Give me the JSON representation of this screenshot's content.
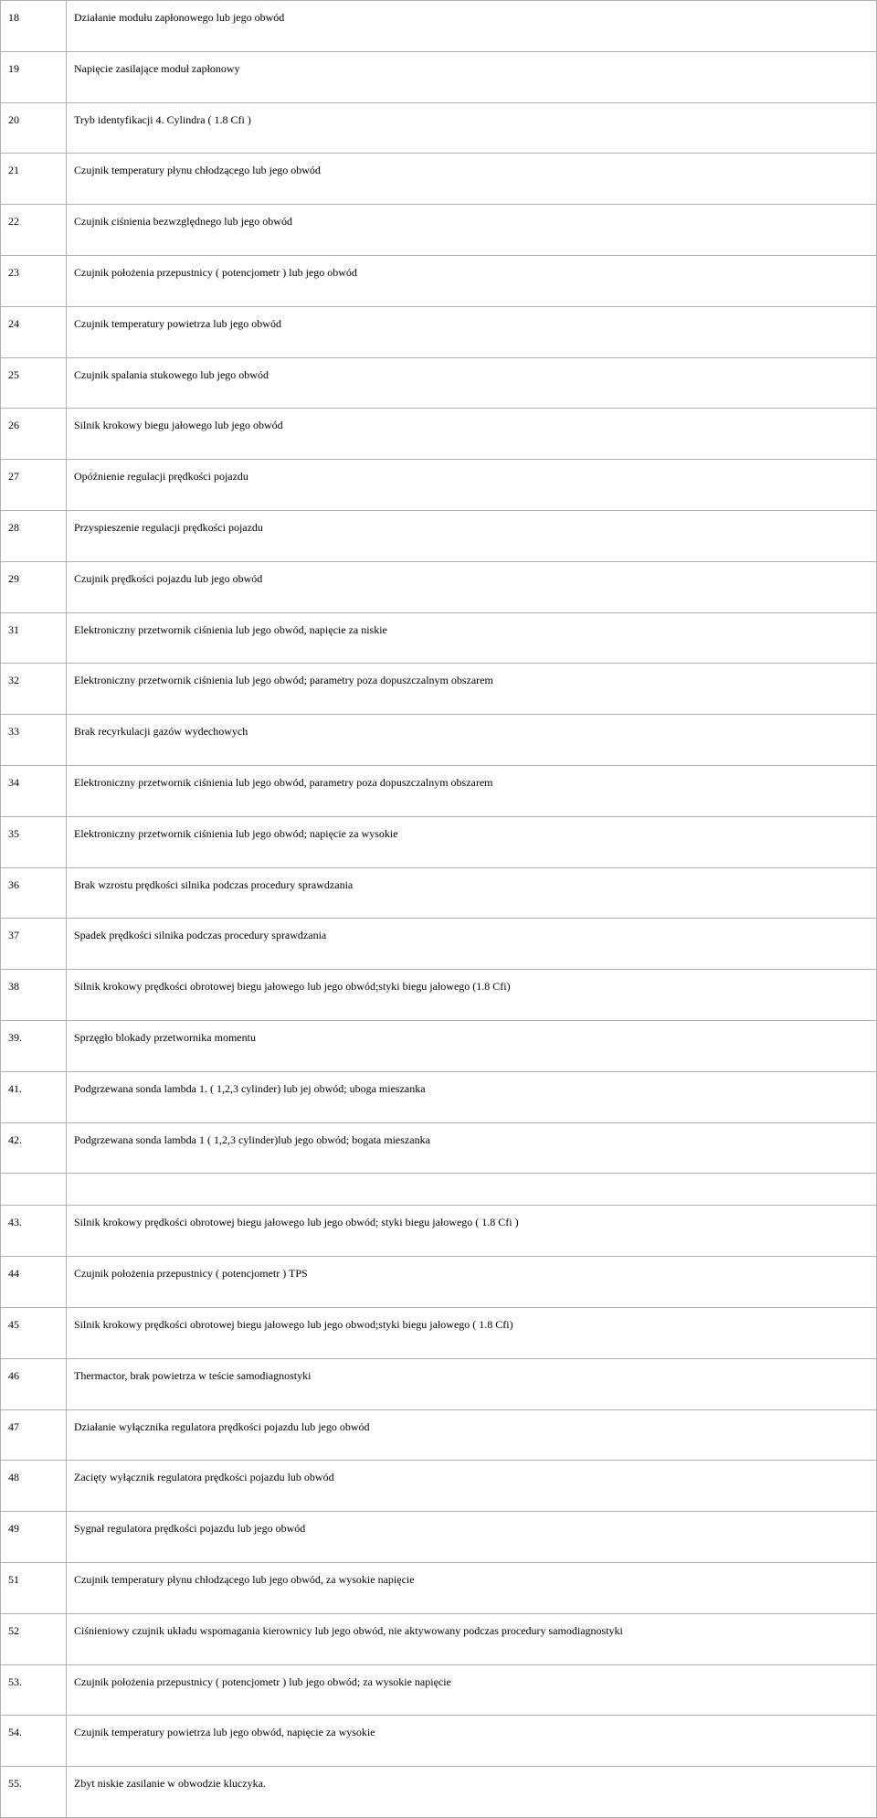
{
  "rows": [
    {
      "code": "18",
      "desc": "Działanie modułu zapłonowego lub jego obwód"
    },
    {
      "code": "19",
      "desc": "Napięcie zasilające moduł zapłonowy"
    },
    {
      "code": "20",
      "desc": "Tryb identyfikacji 4. Cylindra ( 1.8 Cfi )"
    },
    {
      "code": "21",
      "desc": "Czujnik temperatury płynu chłodzącego lub jego obwód"
    },
    {
      "code": "22",
      "desc": "Czujnik ciśnienia bezwzględnego lub jego obwód"
    },
    {
      "code": "23",
      "desc": "Czujnik położenia przepustnicy ( potencjometr ) lub jego obwód"
    },
    {
      "code": "24",
      "desc": "Czujnik temperatury powietrza lub jego obwód"
    },
    {
      "code": "25",
      "desc": "Czujnik spalania stukowego lub jego obwód"
    },
    {
      "code": "26",
      "desc": "Silnik krokowy biegu jałowego lub jego obwód"
    },
    {
      "code": "27",
      "desc": "Opóźnienie regulacji prędkości pojazdu"
    },
    {
      "code": "28",
      "desc": "Przyspieszenie regulacji prędkości pojazdu"
    },
    {
      "code": "29",
      "desc": "Czujnik prędkości pojazdu lub jego obwód"
    },
    {
      "code": "31",
      "desc": "Elektroniczny przetwornik ciśnienia lub jego obwód, napięcie za niskie"
    },
    {
      "code": "32",
      "desc": "Elektroniczny przetwornik ciśnienia lub jego obwód; parametry poza dopuszczalnym obszarem"
    },
    {
      "code": "33",
      "desc": "Brak recyrkulacji gazów wydechowych"
    },
    {
      "code": "34",
      "desc": "Elektroniczny przetwornik ciśnienia lub jego obwód, parametry poza dopuszczalnym obszarem"
    },
    {
      "code": "35",
      "desc": "Elektroniczny przetwornik ciśnienia lub jego obwód; napięcie za wysokie"
    },
    {
      "code": "36",
      "desc": "Brak wzrostu prędkości silnika podczas procedury sprawdzania"
    },
    {
      "code": "37",
      "desc": "Spadek prędkości silnika podczas procedury sprawdzania"
    },
    {
      "code": "38",
      "desc": "Silnik krokowy prędkości obrotowej biegu jałowego lub jego obwód;styki biegu jałowego (1.8 Cfi)"
    },
    {
      "code": "39.",
      "desc": "Sprzęgło blokady przetwornika momentu"
    },
    {
      "code": "41.",
      "desc": "Podgrzewana sonda lambda 1. ( 1,2,3 cylinder) lub jej obwód; uboga mieszanka"
    },
    {
      "code": "42.",
      "desc": "Podgrzewana sonda lambda 1 ( 1,2,3 cylinder)lub jego obwód; bogata mieszanka"
    }
  ],
  "rows2": [
    {
      "code": "43.",
      "desc": "Silnik krokowy prędkości obrotowej biegu jałowego lub jego obwód; styki biegu jałowego ( 1.8 Cfi )"
    },
    {
      "code": "44",
      "desc": "Czujnik położenia przepustnicy ( potencjometr ) TPS"
    },
    {
      "code": "45",
      "desc": "Silnik krokowy prędkości obrotowej biegu jałowego lub jego obwod;styki biegu jałowego ( 1.8 Cfi)"
    },
    {
      "code": "46",
      "desc": "Thermactor, brak powietrza w teście samodiagnostyki"
    },
    {
      "code": "47",
      "desc": "Działanie wyłącznika regulatora prędkości pojazdu lub jego obwód"
    },
    {
      "code": "48",
      "desc": "Zacięty wyłącznik regulatora prędkości pojazdu lub obwód"
    },
    {
      "code": "49",
      "desc": "Sygnał regulatora prędkości pojazdu lub jego obwód"
    },
    {
      "code": "51",
      "desc": "Czujnik temperatury płynu chłodzącego lub jego obwód, za wysokie napięcie"
    },
    {
      "code": "52",
      "desc": "Ciśnieniowy czujnik układu wspomagania kierownicy lub jego obwód, nie aktywowany podczas procedury samodiagnostyki"
    },
    {
      "code": "53.",
      "desc": "Czujnik położenia przepustnicy ( potencjometr ) lub jego obwód; za wysokie napięcie"
    },
    {
      "code": "54.",
      "desc": "Czujnik temperatury powietrza lub jego obwód, napięcie za wysokie"
    },
    {
      "code": "55.",
      "desc": "Zbyt niskie zasilanie w obwodzie kluczyka."
    }
  ]
}
